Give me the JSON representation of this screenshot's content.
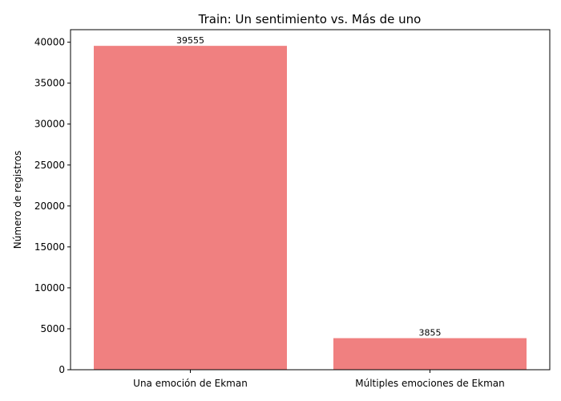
{
  "chart_data": {
    "type": "bar",
    "title": "Train: Un sentimiento vs. Más de uno",
    "xlabel": "",
    "ylabel": "Número de registros",
    "categories": [
      "Una emoción de Ekman",
      "Múltiples emociones de Ekman"
    ],
    "values": [
      39555,
      3855
    ],
    "data_labels": [
      "39555",
      "3855"
    ],
    "ylim": [
      0,
      41530
    ],
    "yticks": [
      0,
      5000,
      10000,
      15000,
      20000,
      25000,
      30000,
      35000,
      40000
    ],
    "bar_color": "#f08080",
    "grid": false,
    "legend": "none"
  }
}
